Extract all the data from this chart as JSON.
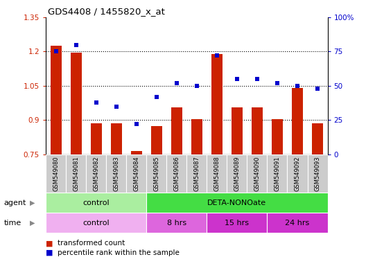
{
  "title": "GDS4408 / 1455820_x_at",
  "samples": [
    "GSM549080",
    "GSM549081",
    "GSM549082",
    "GSM549083",
    "GSM549084",
    "GSM549085",
    "GSM549086",
    "GSM549087",
    "GSM549088",
    "GSM549089",
    "GSM549090",
    "GSM549091",
    "GSM549092",
    "GSM549093"
  ],
  "bar_values": [
    1.225,
    1.195,
    0.885,
    0.885,
    0.765,
    0.875,
    0.955,
    0.905,
    1.19,
    0.955,
    0.955,
    0.905,
    1.04,
    0.885
  ],
  "dot_values": [
    75,
    80,
    38,
    35,
    22,
    42,
    52,
    50,
    72,
    55,
    55,
    52,
    50,
    48
  ],
  "bar_color": "#cc2200",
  "dot_color": "#0000cc",
  "ylim_left": [
    0.75,
    1.35
  ],
  "ylim_right": [
    0,
    100
  ],
  "yticks_left": [
    0.75,
    0.9,
    1.05,
    1.2,
    1.35
  ],
  "yticks_right": [
    0,
    25,
    50,
    75,
    100
  ],
  "ytick_labels_left": [
    "0.75",
    "0.9",
    "1.05",
    "1.2",
    "1.35"
  ],
  "ytick_labels_right": [
    "0",
    "25",
    "50",
    "75",
    "100%"
  ],
  "hlines": [
    0.9,
    1.05,
    1.2
  ],
  "agent_groups": [
    {
      "label": "control",
      "start": 0,
      "end": 5,
      "color": "#aaeea0"
    },
    {
      "label": "DETA-NONOate",
      "start": 5,
      "end": 14,
      "color": "#44dd44"
    }
  ],
  "time_groups": [
    {
      "label": "control",
      "start": 0,
      "end": 5,
      "color": "#f0b0f0"
    },
    {
      "label": "8 hrs",
      "start": 5,
      "end": 8,
      "color": "#dd66dd"
    },
    {
      "label": "15 hrs",
      "start": 8,
      "end": 11,
      "color": "#cc33cc"
    },
    {
      "label": "24 hrs",
      "start": 11,
      "end": 14,
      "color": "#cc33cc"
    }
  ],
  "legend_bar_label": "transformed count",
  "legend_dot_label": "percentile rank within the sample",
  "bar_width": 0.55,
  "xtick_bg": "#cccccc"
}
